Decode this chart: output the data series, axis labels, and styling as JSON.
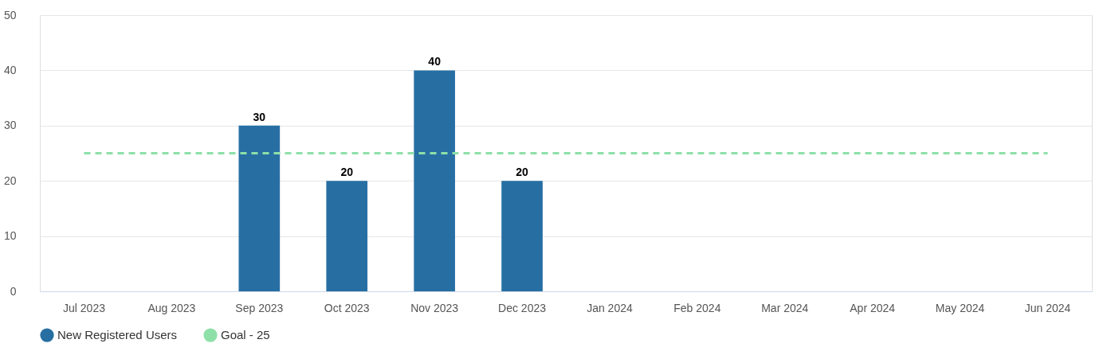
{
  "chart_data": {
    "type": "bar",
    "categories": [
      "Jul 2023",
      "Aug 2023",
      "Sep 2023",
      "Oct 2023",
      "Nov 2023",
      "Dec 2023",
      "Jan 2024",
      "Feb 2024",
      "Mar 2024",
      "Apr 2024",
      "May 2024",
      "Jun 2024"
    ],
    "series": [
      {
        "name": "New Registered Users",
        "color": "#276fa3",
        "values": [
          null,
          null,
          30,
          20,
          40,
          20,
          null,
          null,
          null,
          null,
          null,
          null
        ],
        "value_labels": [
          null,
          null,
          "30",
          "20",
          "40",
          "20",
          null,
          null,
          null,
          null,
          null,
          null
        ]
      },
      {
        "name": "Goal - 25",
        "type": "line",
        "color": "#8ee0a8",
        "line_style": "dashed",
        "marker": "none",
        "values": [
          25,
          25,
          25,
          25,
          25,
          25,
          25,
          25,
          25,
          25,
          25,
          25
        ]
      }
    ],
    "ylim": [
      0,
      50
    ],
    "yticks": [
      0,
      10,
      20,
      30,
      40,
      50
    ],
    "grid": "y",
    "legend": "bottom"
  }
}
